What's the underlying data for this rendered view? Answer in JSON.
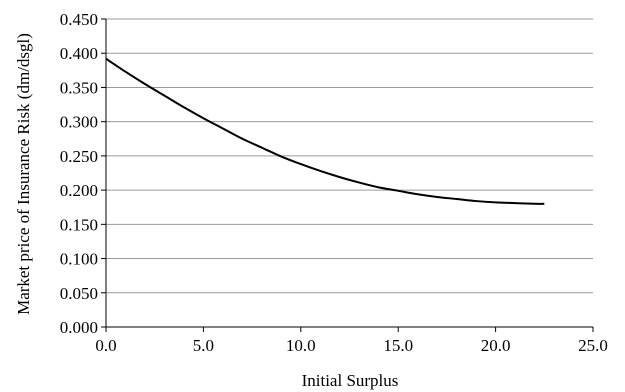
{
  "chart_data": {
    "type": "line",
    "title": "",
    "xlabel": "Initial Surplus",
    "ylabel": "Market price of  Insurance Risk (dm/dsgl)",
    "xlim": [
      0,
      25
    ],
    "ylim": [
      0,
      0.45
    ],
    "x_ticks": [
      "0.0",
      "5.0",
      "10.0",
      "15.0",
      "20.0",
      "25.0"
    ],
    "y_ticks": [
      "0.000",
      "0.050",
      "0.100",
      "0.150",
      "0.200",
      "0.250",
      "0.300",
      "0.350",
      "0.400",
      "0.450"
    ],
    "grid": true,
    "legend": "none",
    "series": [
      {
        "color": "#000000",
        "x": [
          0,
          1,
          2,
          3,
          4,
          5,
          6,
          7,
          8,
          9,
          10,
          11,
          12,
          13,
          14,
          15,
          16,
          17,
          18,
          19,
          20,
          21,
          22,
          22.5
        ],
        "y": [
          0.392,
          0.373,
          0.355,
          0.338,
          0.321,
          0.305,
          0.29,
          0.275,
          0.262,
          0.249,
          0.238,
          0.228,
          0.219,
          0.211,
          0.204,
          0.199,
          0.194,
          0.19,
          0.187,
          0.184,
          0.182,
          0.181,
          0.18,
          0.18
        ]
      }
    ]
  }
}
